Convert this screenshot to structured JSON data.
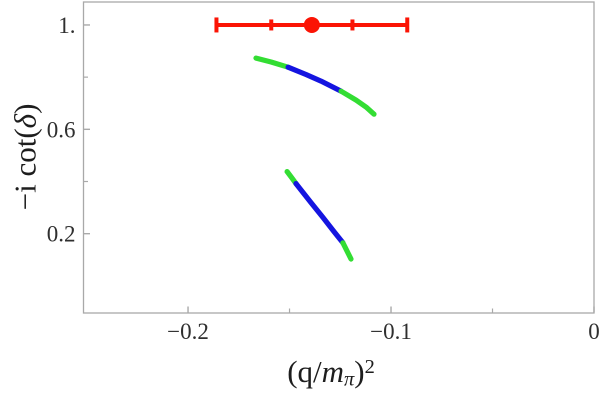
{
  "colors": {
    "frame": "#a9a9a9",
    "tick": "#a9a9a9",
    "text": "#2f2f2f",
    "red": "#fb1405",
    "green": "#33dd33",
    "blue": "#1414e0",
    "background": "#ffffff"
  },
  "labels": {
    "ylabel_pre": "−i cot(",
    "ylabel_var": "δ",
    "ylabel_post": ")",
    "xlabel_pre": "(q/",
    "xlabel_var": "m",
    "xlabel_sub": "π",
    "xlabel_post": ")",
    "xlabel_sup": "2"
  },
  "chart_data": {
    "type": "scatter",
    "title": "",
    "xlabel": "(q/m_pi)^2",
    "ylabel": "-i cot(delta)",
    "grid": false,
    "legend": false,
    "x_range": [
      -0.2515,
      0
    ],
    "y_range": [
      -0.104,
      1.088
    ],
    "x_ticks": {
      "major": [
        {
          "value": -0.2,
          "label": "−0.2"
        },
        {
          "value": -0.1,
          "label": "−0.1"
        },
        {
          "value": 0,
          "label": "0"
        }
      ],
      "minor": [
        -0.15,
        -0.05
      ]
    },
    "y_ticks": {
      "major": [
        {
          "value": 1.0,
          "label": "1."
        },
        {
          "value": 0.6,
          "label": "0.6"
        },
        {
          "value": 0.2,
          "label": "0.2"
        }
      ],
      "minor": [
        0.8,
        0.4
      ]
    },
    "error_point": {
      "x": -0.139,
      "y": 1.0,
      "x_err_inner": 0.02,
      "x_err_outer": 0.047,
      "color": "#fb1405"
    },
    "curves": [
      {
        "name": "upper-branch",
        "points": [
          [
            -0.1665,
            0.873
          ],
          [
            -0.1591,
            0.858
          ],
          [
            -0.1507,
            0.838
          ],
          [
            -0.1419,
            0.81
          ],
          [
            -0.1345,
            0.785
          ],
          [
            -0.1246,
            0.746
          ],
          [
            -0.1172,
            0.712
          ],
          [
            -0.1123,
            0.685
          ],
          [
            -0.1084,
            0.658
          ]
        ],
        "segments": [
          {
            "start": 0,
            "end": 2,
            "color": "#33dd33"
          },
          {
            "start": 2,
            "end": 5,
            "color": "#1414e0"
          },
          {
            "start": 5,
            "end": 8,
            "color": "#33dd33"
          }
        ]
      },
      {
        "name": "lower-branch",
        "points": [
          [
            -0.1512,
            0.438
          ],
          [
            -0.149,
            0.415
          ],
          [
            -0.1468,
            0.392
          ],
          [
            -0.1394,
            0.319
          ],
          [
            -0.1335,
            0.262
          ],
          [
            -0.1281,
            0.208
          ],
          [
            -0.1237,
            0.165
          ],
          [
            -0.1197,
            0.103
          ]
        ],
        "segments": [
          {
            "start": 0,
            "end": 2,
            "color": "#33dd33"
          },
          {
            "start": 2,
            "end": 6,
            "color": "#1414e0"
          },
          {
            "start": 6,
            "end": 7,
            "color": "#33dd33"
          }
        ]
      }
    ]
  }
}
